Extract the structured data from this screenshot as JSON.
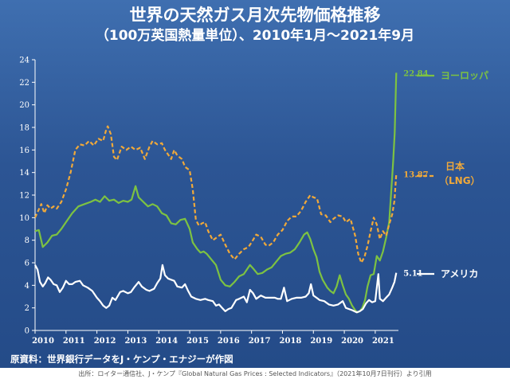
{
  "title": "世界の天然ガス月次先物価格推移",
  "subtitle": "（100万英国熱量単位）、2010年1月～2021年9月",
  "source_note": "原資料：世界銀行データをJ・ケンプ・エナジーが作図",
  "citation": "出所：ロイター通信社、J・ケンプ『Global Natural Gas Prices : Selected Indicators』（2021年10月7日刊行）より引用",
  "chart_data": {
    "type": "line",
    "title": "世界の天然ガス月次先物価格推移",
    "subtitle": "（100万英国熱量単位）、2010年1月～2021年9月",
    "xlabel": "",
    "ylabel": "",
    "xlim": [
      2010.0,
      2021.75
    ],
    "ylim": [
      0,
      24
    ],
    "yticks": [
      0,
      2,
      4,
      6,
      8,
      10,
      12,
      14,
      16,
      18,
      20,
      22,
      24
    ],
    "xticks": [
      2010,
      2011,
      2012,
      2013,
      2014,
      2015,
      2016,
      2017,
      2018,
      2019,
      2020,
      2021
    ],
    "grid": false,
    "legend": "right",
    "series": [
      {
        "name": "ヨーロッパ",
        "legend_label": "ヨーロッパ",
        "color": "#7dc242",
        "style": "solid",
        "end_value": "22.84",
        "points": [
          [
            2010.0,
            8.8
          ],
          [
            2010.12,
            8.9
          ],
          [
            2010.25,
            7.4
          ],
          [
            2010.4,
            7.8
          ],
          [
            2010.55,
            8.4
          ],
          [
            2010.7,
            8.5
          ],
          [
            2010.85,
            9.0
          ],
          [
            2011.0,
            9.6
          ],
          [
            2011.2,
            10.4
          ],
          [
            2011.4,
            11.0
          ],
          [
            2011.6,
            11.2
          ],
          [
            2011.8,
            11.4
          ],
          [
            2011.95,
            11.6
          ],
          [
            2012.1,
            11.4
          ],
          [
            2012.25,
            11.9
          ],
          [
            2012.4,
            11.5
          ],
          [
            2012.55,
            11.6
          ],
          [
            2012.7,
            11.3
          ],
          [
            2012.85,
            11.5
          ],
          [
            2013.0,
            11.4
          ],
          [
            2013.12,
            11.6
          ],
          [
            2013.25,
            12.8
          ],
          [
            2013.35,
            11.8
          ],
          [
            2013.5,
            11.4
          ],
          [
            2013.65,
            11.0
          ],
          [
            2013.8,
            11.2
          ],
          [
            2013.95,
            11.0
          ],
          [
            2014.1,
            10.4
          ],
          [
            2014.25,
            10.2
          ],
          [
            2014.4,
            9.5
          ],
          [
            2014.55,
            9.4
          ],
          [
            2014.7,
            9.8
          ],
          [
            2014.85,
            9.9
          ],
          [
            2015.0,
            9.0
          ],
          [
            2015.1,
            7.8
          ],
          [
            2015.25,
            7.2
          ],
          [
            2015.35,
            6.9
          ],
          [
            2015.45,
            7.0
          ],
          [
            2015.55,
            6.8
          ],
          [
            2015.7,
            6.3
          ],
          [
            2015.85,
            5.8
          ],
          [
            2016.0,
            4.5
          ],
          [
            2016.15,
            4.0
          ],
          [
            2016.3,
            3.9
          ],
          [
            2016.45,
            4.3
          ],
          [
            2016.6,
            4.8
          ],
          [
            2016.75,
            5.0
          ],
          [
            2016.85,
            5.4
          ],
          [
            2016.95,
            5.8
          ],
          [
            2017.05,
            5.5
          ],
          [
            2017.2,
            5.0
          ],
          [
            2017.35,
            5.1
          ],
          [
            2017.5,
            5.4
          ],
          [
            2017.65,
            5.6
          ],
          [
            2017.8,
            6.1
          ],
          [
            2017.95,
            6.6
          ],
          [
            2018.1,
            6.8
          ],
          [
            2018.25,
            6.9
          ],
          [
            2018.4,
            7.2
          ],
          [
            2018.55,
            7.8
          ],
          [
            2018.7,
            8.5
          ],
          [
            2018.8,
            8.7
          ],
          [
            2018.9,
            8.1
          ],
          [
            2019.0,
            7.2
          ],
          [
            2019.1,
            6.5
          ],
          [
            2019.2,
            5.2
          ],
          [
            2019.3,
            4.5
          ],
          [
            2019.45,
            3.8
          ],
          [
            2019.55,
            3.5
          ],
          [
            2019.65,
            3.3
          ],
          [
            2019.75,
            3.9
          ],
          [
            2019.85,
            4.9
          ],
          [
            2019.95,
            4.0
          ],
          [
            2020.05,
            3.2
          ],
          [
            2020.15,
            2.8
          ],
          [
            2020.25,
            2.2
          ],
          [
            2020.35,
            1.8
          ],
          [
            2020.42,
            1.6
          ],
          [
            2020.5,
            1.7
          ],
          [
            2020.58,
            2.0
          ],
          [
            2020.67,
            2.7
          ],
          [
            2020.75,
            3.9
          ],
          [
            2020.85,
            4.9
          ],
          [
            2020.95,
            5.0
          ],
          [
            2021.05,
            6.6
          ],
          [
            2021.15,
            6.2
          ],
          [
            2021.25,
            7.0
          ],
          [
            2021.35,
            8.2
          ],
          [
            2021.45,
            9.6
          ],
          [
            2021.52,
            12.5
          ],
          [
            2021.58,
            15.0
          ],
          [
            2021.63,
            17.5
          ],
          [
            2021.68,
            22.84
          ]
        ]
      },
      {
        "name": "日本（LNG）",
        "legend_label_line1": "日本",
        "legend_label_line2": "（LNG）",
        "color": "#f0a93a",
        "style": "dashed",
        "end_value": "13.87",
        "points": [
          [
            2010.0,
            10.0
          ],
          [
            2010.1,
            10.6
          ],
          [
            2010.2,
            11.2
          ],
          [
            2010.3,
            10.4
          ],
          [
            2010.4,
            11.1
          ],
          [
            2010.5,
            10.8
          ],
          [
            2010.6,
            11.0
          ],
          [
            2010.7,
            10.8
          ],
          [
            2010.85,
            11.4
          ],
          [
            2011.0,
            12.5
          ],
          [
            2011.15,
            14.0
          ],
          [
            2011.3,
            16.0
          ],
          [
            2011.45,
            16.5
          ],
          [
            2011.6,
            16.4
          ],
          [
            2011.75,
            16.8
          ],
          [
            2011.9,
            16.4
          ],
          [
            2012.05,
            17.0
          ],
          [
            2012.2,
            16.8
          ],
          [
            2012.3,
            17.8
          ],
          [
            2012.35,
            18.1
          ],
          [
            2012.45,
            17.4
          ],
          [
            2012.55,
            15.4
          ],
          [
            2012.65,
            15.1
          ],
          [
            2012.8,
            16.3
          ],
          [
            2012.95,
            16.0
          ],
          [
            2013.1,
            16.3
          ],
          [
            2013.25,
            16.0
          ],
          [
            2013.4,
            16.2
          ],
          [
            2013.55,
            15.2
          ],
          [
            2013.7,
            16.3
          ],
          [
            2013.8,
            16.8
          ],
          [
            2013.95,
            16.5
          ],
          [
            2014.1,
            16.6
          ],
          [
            2014.2,
            16.0
          ],
          [
            2014.3,
            15.6
          ],
          [
            2014.4,
            15.2
          ],
          [
            2014.5,
            16.0
          ],
          [
            2014.6,
            15.5
          ],
          [
            2014.75,
            15.2
          ],
          [
            2014.85,
            14.5
          ],
          [
            2015.0,
            14.2
          ],
          [
            2015.1,
            12.5
          ],
          [
            2015.2,
            9.8
          ],
          [
            2015.3,
            9.3
          ],
          [
            2015.4,
            9.5
          ],
          [
            2015.5,
            9.6
          ],
          [
            2015.6,
            8.8
          ],
          [
            2015.75,
            8.0
          ],
          [
            2015.9,
            8.3
          ],
          [
            2016.0,
            8.5
          ],
          [
            2016.15,
            7.6
          ],
          [
            2016.3,
            6.8
          ],
          [
            2016.45,
            6.3
          ],
          [
            2016.6,
            6.8
          ],
          [
            2016.75,
            7.2
          ],
          [
            2016.9,
            7.4
          ],
          [
            2017.0,
            7.8
          ],
          [
            2017.15,
            8.5
          ],
          [
            2017.3,
            8.3
          ],
          [
            2017.45,
            7.6
          ],
          [
            2017.55,
            7.5
          ],
          [
            2017.7,
            7.8
          ],
          [
            2017.85,
            8.5
          ],
          [
            2018.0,
            8.9
          ],
          [
            2018.15,
            9.7
          ],
          [
            2018.3,
            10.1
          ],
          [
            2018.45,
            10.1
          ],
          [
            2018.6,
            10.6
          ],
          [
            2018.75,
            11.4
          ],
          [
            2018.9,
            12.0
          ],
          [
            2019.0,
            11.8
          ],
          [
            2019.12,
            11.7
          ],
          [
            2019.25,
            10.3
          ],
          [
            2019.4,
            10.2
          ],
          [
            2019.55,
            9.6
          ],
          [
            2019.65,
            9.9
          ],
          [
            2019.8,
            10.2
          ],
          [
            2019.95,
            10.1
          ],
          [
            2020.05,
            9.6
          ],
          [
            2020.2,
            9.9
          ],
          [
            2020.35,
            8.4
          ],
          [
            2020.45,
            6.8
          ],
          [
            2020.55,
            6.0
          ],
          [
            2020.65,
            6.5
          ],
          [
            2020.75,
            7.5
          ],
          [
            2020.85,
            8.8
          ],
          [
            2020.95,
            10.0
          ],
          [
            2021.05,
            9.4
          ],
          [
            2021.15,
            8.1
          ],
          [
            2021.25,
            8.8
          ],
          [
            2021.35,
            8.4
          ],
          [
            2021.45,
            9.4
          ],
          [
            2021.55,
            10.3
          ],
          [
            2021.62,
            11.5
          ],
          [
            2021.68,
            13.87
          ]
        ]
      },
      {
        "name": "アメリカ",
        "legend_label": "アメリカ",
        "color": "#ffffff",
        "style": "solid",
        "end_value": "5.11",
        "points": [
          [
            2010.0,
            5.8
          ],
          [
            2010.08,
            5.4
          ],
          [
            2010.16,
            4.3
          ],
          [
            2010.25,
            3.9
          ],
          [
            2010.33,
            4.2
          ],
          [
            2010.42,
            4.7
          ],
          [
            2010.5,
            4.5
          ],
          [
            2010.6,
            4.1
          ],
          [
            2010.7,
            4.0
          ],
          [
            2010.8,
            3.4
          ],
          [
            2010.9,
            3.8
          ],
          [
            2011.0,
            4.4
          ],
          [
            2011.1,
            4.1
          ],
          [
            2011.2,
            4.1
          ],
          [
            2011.3,
            4.3
          ],
          [
            2011.45,
            4.4
          ],
          [
            2011.55,
            4.0
          ],
          [
            2011.7,
            3.8
          ],
          [
            2011.85,
            3.5
          ],
          [
            2012.0,
            2.9
          ],
          [
            2012.1,
            2.6
          ],
          [
            2012.2,
            2.2
          ],
          [
            2012.3,
            2.0
          ],
          [
            2012.4,
            2.2
          ],
          [
            2012.5,
            2.9
          ],
          [
            2012.6,
            2.7
          ],
          [
            2012.75,
            3.4
          ],
          [
            2012.85,
            3.5
          ],
          [
            2013.0,
            3.3
          ],
          [
            2013.1,
            3.4
          ],
          [
            2013.2,
            3.8
          ],
          [
            2013.35,
            4.3
          ],
          [
            2013.45,
            3.9
          ],
          [
            2013.6,
            3.6
          ],
          [
            2013.7,
            3.5
          ],
          [
            2013.85,
            3.7
          ],
          [
            2013.95,
            4.2
          ],
          [
            2014.05,
            4.6
          ],
          [
            2014.12,
            5.8
          ],
          [
            2014.2,
            4.9
          ],
          [
            2014.3,
            4.6
          ],
          [
            2014.4,
            4.5
          ],
          [
            2014.5,
            4.4
          ],
          [
            2014.6,
            3.9
          ],
          [
            2014.75,
            3.8
          ],
          [
            2014.85,
            4.1
          ],
          [
            2014.95,
            3.5
          ],
          [
            2015.05,
            3.0
          ],
          [
            2015.2,
            2.8
          ],
          [
            2015.35,
            2.7
          ],
          [
            2015.5,
            2.8
          ],
          [
            2015.6,
            2.7
          ],
          [
            2015.75,
            2.6
          ],
          [
            2015.85,
            2.2
          ],
          [
            2015.95,
            2.3
          ],
          [
            2016.05,
            2.0
          ],
          [
            2016.15,
            1.7
          ],
          [
            2016.25,
            1.9
          ],
          [
            2016.35,
            2.0
          ],
          [
            2016.5,
            2.7
          ],
          [
            2016.6,
            2.8
          ],
          [
            2016.75,
            3.0
          ],
          [
            2016.85,
            2.5
          ],
          [
            2016.95,
            3.6
          ],
          [
            2017.05,
            3.3
          ],
          [
            2017.15,
            2.8
          ],
          [
            2017.3,
            3.1
          ],
          [
            2017.45,
            2.9
          ],
          [
            2017.6,
            2.9
          ],
          [
            2017.75,
            2.9
          ],
          [
            2017.85,
            2.8
          ],
          [
            2017.95,
            2.8
          ],
          [
            2018.05,
            3.8
          ],
          [
            2018.15,
            2.6
          ],
          [
            2018.3,
            2.8
          ],
          [
            2018.45,
            2.9
          ],
          [
            2018.6,
            2.9
          ],
          [
            2018.75,
            3.0
          ],
          [
            2018.85,
            3.3
          ],
          [
            2018.92,
            4.1
          ],
          [
            2019.0,
            3.1
          ],
          [
            2019.1,
            2.9
          ],
          [
            2019.2,
            2.7
          ],
          [
            2019.35,
            2.6
          ],
          [
            2019.5,
            2.3
          ],
          [
            2019.65,
            2.2
          ],
          [
            2019.8,
            2.3
          ],
          [
            2019.95,
            2.6
          ],
          [
            2020.05,
            2.0
          ],
          [
            2020.15,
            1.9
          ],
          [
            2020.25,
            1.8
          ],
          [
            2020.4,
            1.6
          ],
          [
            2020.5,
            1.7
          ],
          [
            2020.6,
            1.9
          ],
          [
            2020.7,
            2.4
          ],
          [
            2020.8,
            2.7
          ],
          [
            2020.9,
            2.5
          ],
          [
            2021.0,
            2.6
          ],
          [
            2021.1,
            5.0
          ],
          [
            2021.15,
            2.8
          ],
          [
            2021.25,
            2.6
          ],
          [
            2021.35,
            2.9
          ],
          [
            2021.45,
            3.2
          ],
          [
            2021.55,
            3.8
          ],
          [
            2021.62,
            4.3
          ],
          [
            2021.68,
            5.11
          ]
        ]
      }
    ]
  }
}
